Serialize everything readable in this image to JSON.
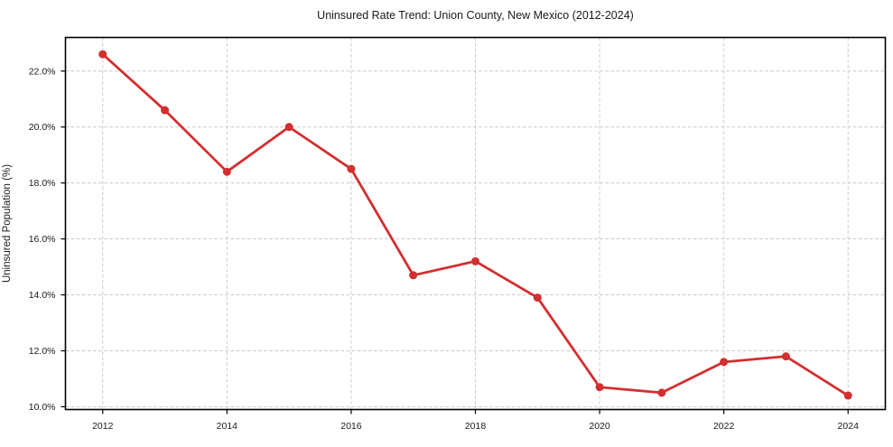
{
  "chart_data": {
    "type": "line",
    "title": "Uninsured Rate Trend: Union County, New Mexico (2012-2024)",
    "xlabel": "",
    "ylabel": "Uninsured Population (%)",
    "x": [
      2012,
      2013,
      2014,
      2015,
      2016,
      2017,
      2018,
      2019,
      2020,
      2021,
      2022,
      2023,
      2024
    ],
    "values": [
      22.6,
      20.6,
      18.4,
      20.0,
      18.5,
      14.7,
      15.2,
      13.9,
      10.7,
      10.5,
      11.6,
      11.8,
      10.4
    ],
    "xlim": [
      2011.4,
      2024.6
    ],
    "ylim": [
      9.9,
      23.2
    ],
    "x_ticks": [
      2012,
      2014,
      2016,
      2018,
      2020,
      2022,
      2024
    ],
    "x_tick_labels": [
      "2012",
      "2014",
      "2016",
      "2018",
      "2020",
      "2022",
      "2024"
    ],
    "y_ticks": [
      10,
      12,
      14,
      16,
      18,
      20,
      22
    ],
    "y_tick_labels": [
      "10.0%",
      "12.0%",
      "14.0%",
      "16.0%",
      "18.0%",
      "20.0%",
      "22.0%"
    ],
    "grid": true,
    "grid_style": "dashed",
    "legend": "none",
    "marker": "circle",
    "line_color": "#d32f2f",
    "grid_color": "#cccccc",
    "axis_color": "#000000",
    "text_color": "#1a1a1a",
    "background_color": "#ffffff"
  }
}
